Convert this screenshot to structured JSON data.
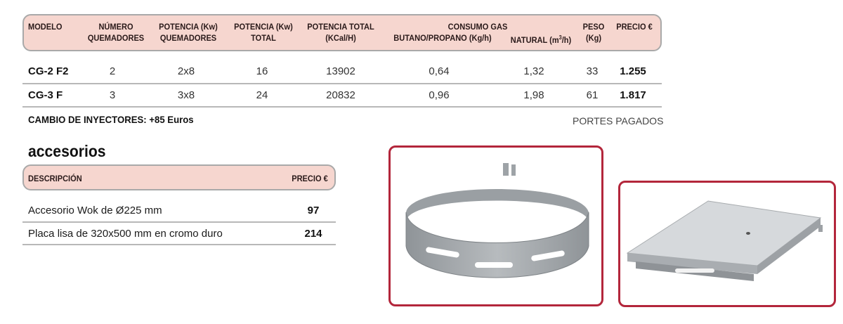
{
  "main_table": {
    "headers": {
      "modelo": "MODELO",
      "numero_1": "NÚMERO",
      "numero_2": "QUEMADORES",
      "pot_kw_1": "POTENCIA (Kw)",
      "pot_kw_2": "QUEMADORES",
      "pot_total_1": "POTENCIA (Kw)",
      "pot_total_2": "TOTAL",
      "pot_kcal_1": "POTENCIA TOTAL",
      "pot_kcal_2": "(KCal/H)",
      "consumo": "CONSUMO GAS",
      "butano": "BUTANO/PROPANO (Kg/h)",
      "natural_pre": "NATURAL (m",
      "natural_sup": "3",
      "natural_post": "/h)",
      "peso_1": "PESO",
      "peso_2": "(Kg)",
      "precio": "PRECIO €"
    },
    "rows": [
      {
        "modelo": "CG-2 F2",
        "quemadores": "2",
        "pot_q": "2x8",
        "pot_total": "16",
        "kcal": "13902",
        "butano": "0,64",
        "natural": "1,32",
        "peso": "33",
        "precio": "1.255"
      },
      {
        "modelo": "CG-3 F",
        "quemadores": "3",
        "pot_q": "3x8",
        "pot_total": "24",
        "kcal": "20832",
        "butano": "0,96",
        "natural": "1,98",
        "peso": "61",
        "precio": "1.817"
      }
    ],
    "note_left": "CAMBIO DE INYECTORES: +85 Euros",
    "note_right": "PORTES PAGADOS"
  },
  "accessories": {
    "title": "accesorios",
    "headers": {
      "descripcion": "DESCRIPCIÓN",
      "precio": "PRECIO €"
    },
    "rows": [
      {
        "descripcion": "Accesorio Wok de Ø225 mm",
        "precio": "97"
      },
      {
        "descripcion": "Placa lisa de 320x500 mm en cromo duro",
        "precio": "214"
      }
    ]
  },
  "colors": {
    "header_bg": "#f6d6cf",
    "frame": "#b3263b",
    "metal": "#a2a7ab"
  },
  "images": {
    "wok_ring": "wok-ring-illustration",
    "plate": "flat-plate-illustration"
  }
}
